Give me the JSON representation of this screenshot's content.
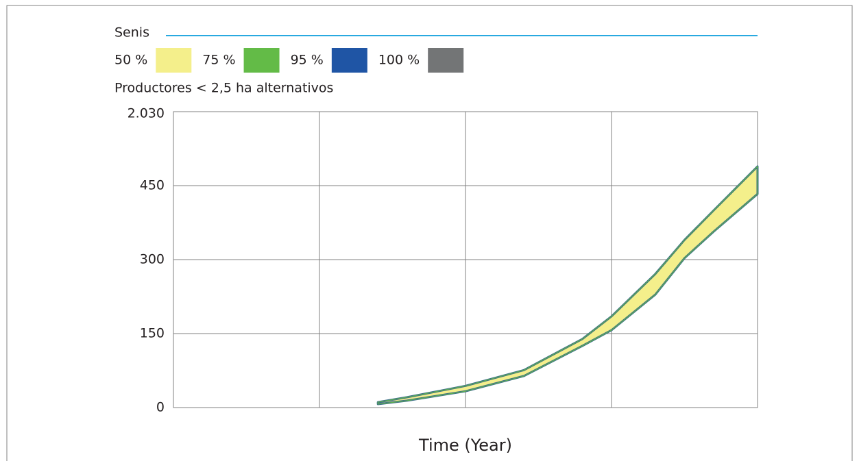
{
  "chart_data": {
    "type": "band",
    "title": "Productores < 2,5 ha alternativos",
    "variable": {
      "name": "Senis",
      "color": "#29a9e0"
    },
    "x_label": "Time (Year)",
    "top_label": "2.030",
    "xlim": [
      1990,
      2030
    ],
    "xticks": [
      2000,
      2010,
      2020
    ],
    "ylim": [
      0,
      600
    ],
    "yticks": [
      0,
      150,
      300,
      450
    ],
    "grid": true,
    "x": [
      2004,
      2006,
      2010,
      2014,
      2018,
      2020,
      2023,
      2025,
      2027,
      2030
    ],
    "series": [
      {
        "name": "50 %",
        "color": "#f4ef8b",
        "lower": [
          7,
          14,
          33,
          64,
          125,
          157,
          229,
          303,
          357,
          433
        ],
        "upper": [
          11,
          21,
          44,
          76,
          139,
          185,
          271,
          340,
          400,
          489
        ]
      },
      {
        "name": "75 %",
        "color": "#63bb47"
      },
      {
        "name": "95 %",
        "color": "#1f55a5"
      },
      {
        "name": "100 %",
        "color": "#737576"
      }
    ]
  }
}
